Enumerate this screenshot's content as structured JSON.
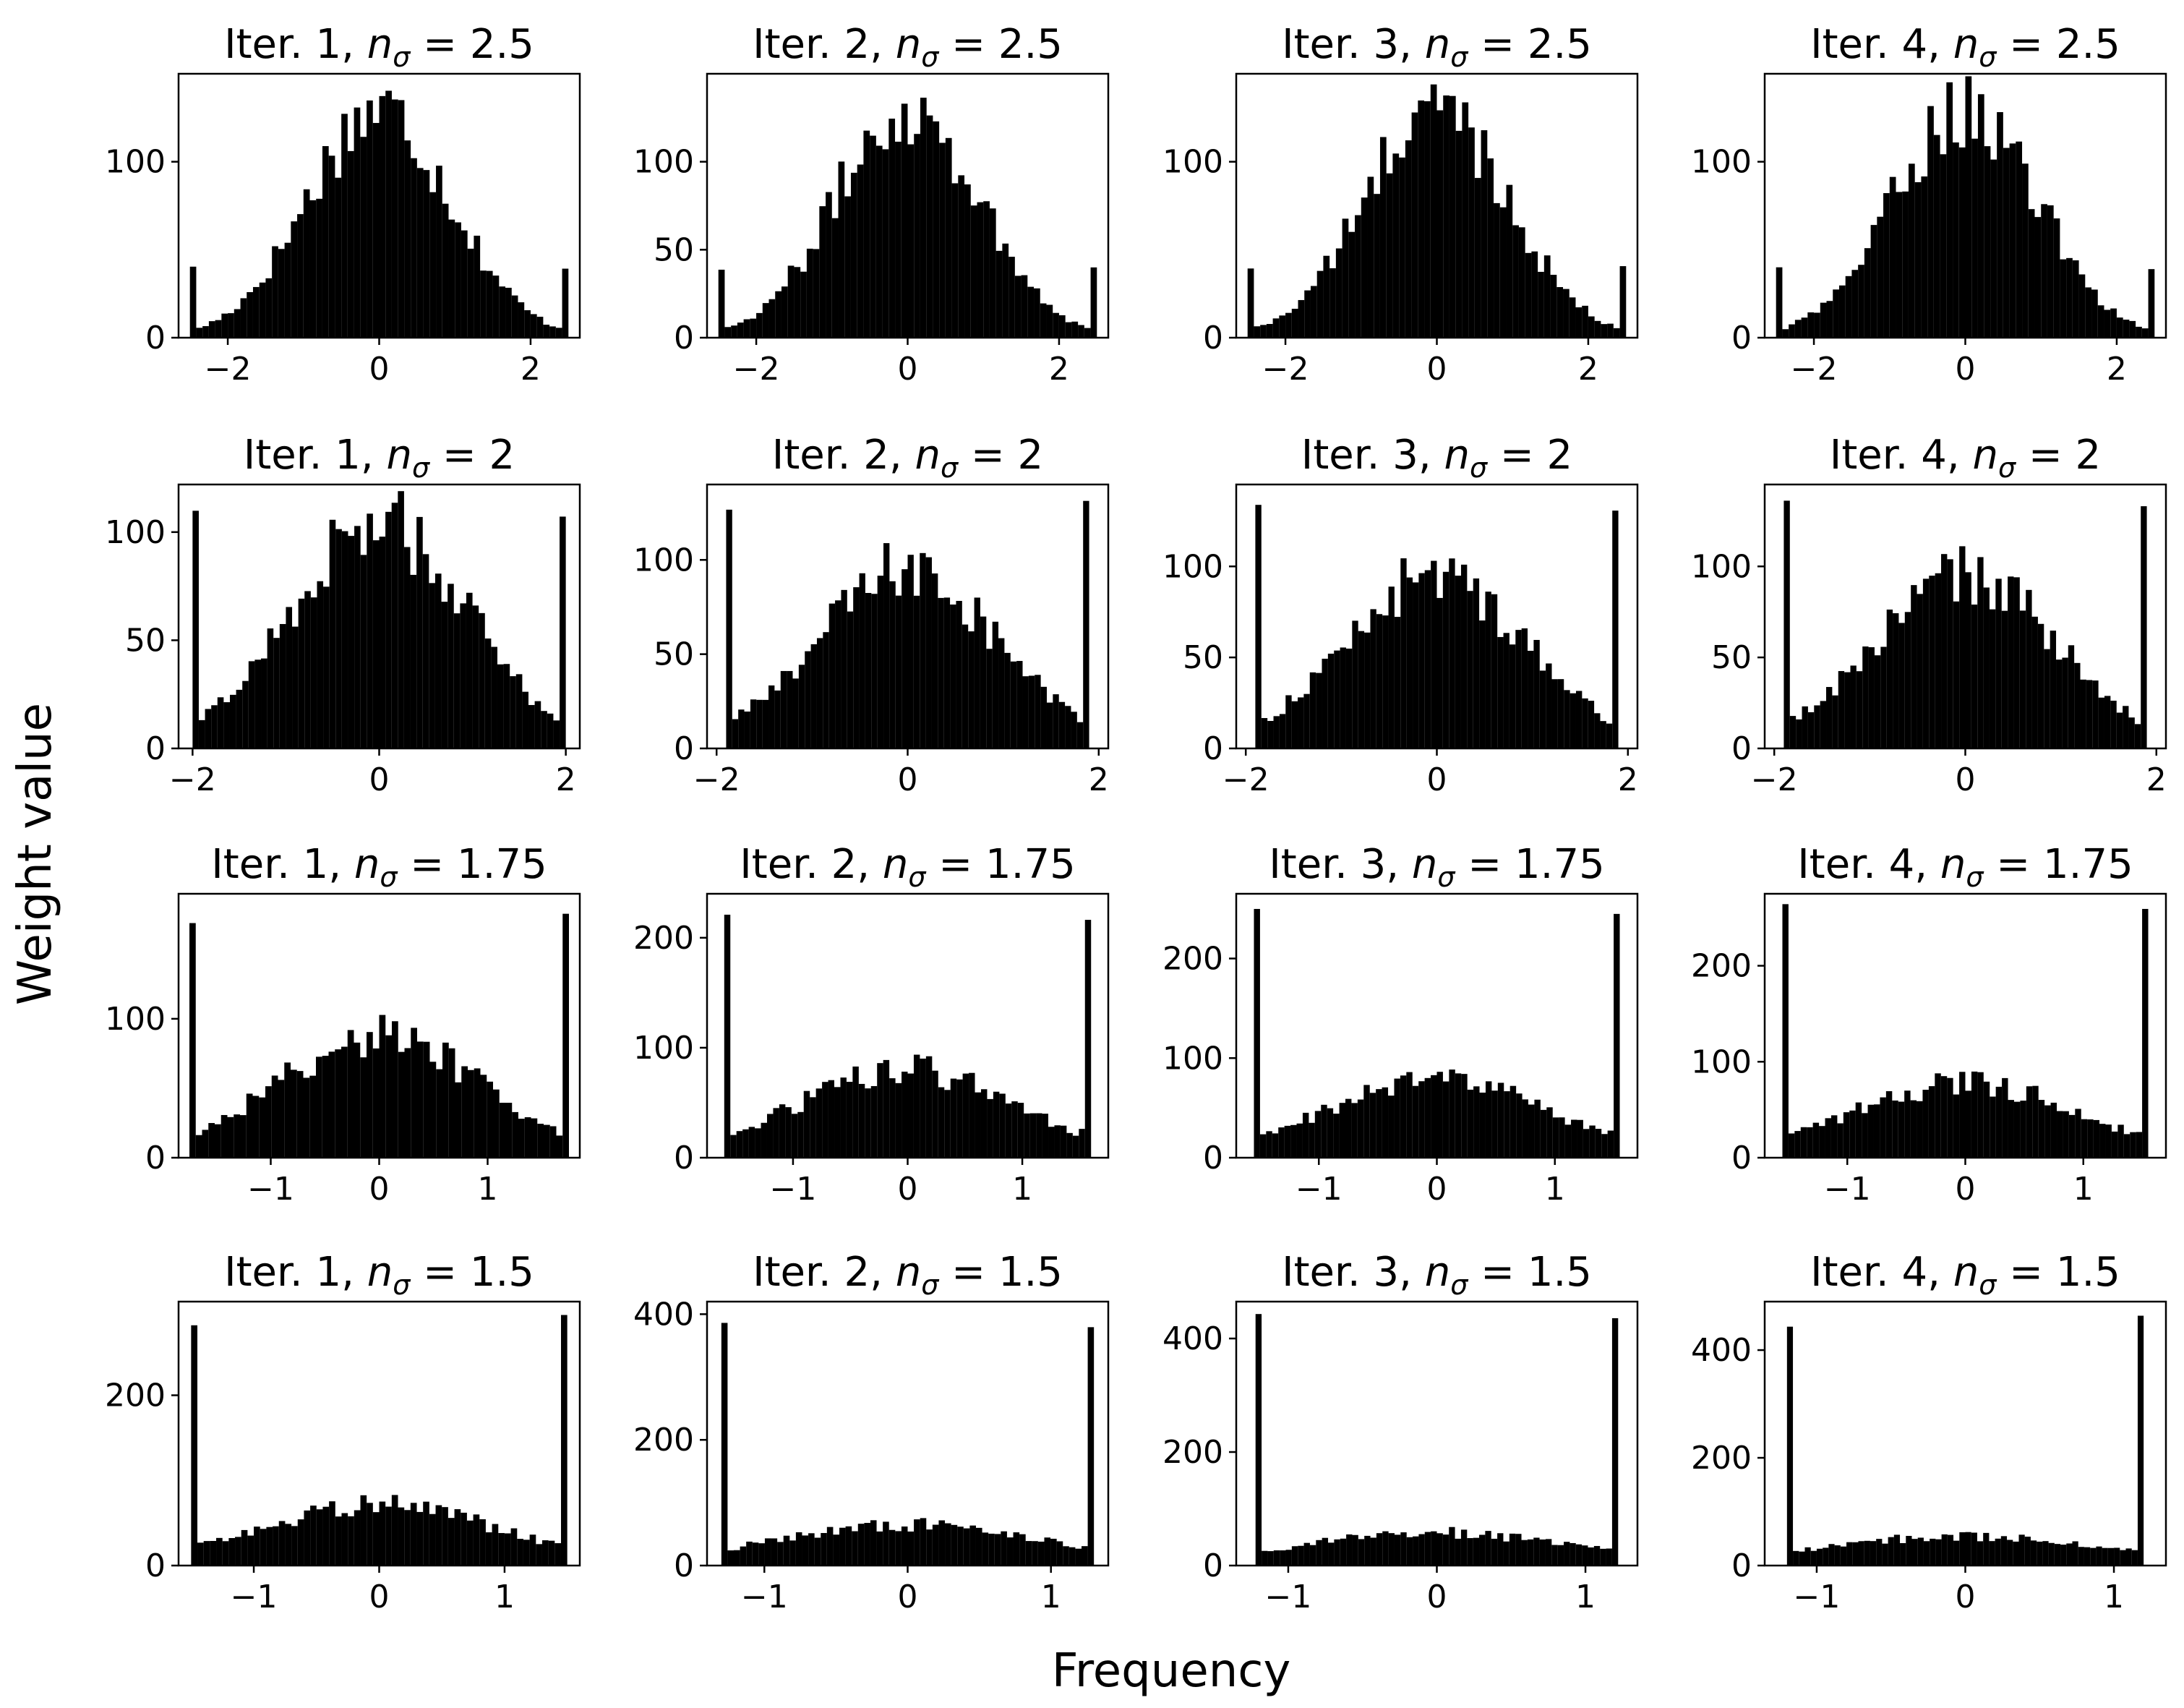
{
  "figure": {
    "xlabel": "Frequency",
    "ylabel": "Weight value",
    "bar_color": "#000000",
    "background": "#ffffff"
  },
  "chart_data": [
    {
      "type": "bar",
      "iter_label": "Iter. 1,",
      "n_sym": "n",
      "n_sub": "σ",
      "n_value": "= 2.5",
      "xlim": [
        -2.65,
        2.65
      ],
      "xticks": [
        -2,
        0,
        2
      ],
      "xtick_labels": [
        "−2",
        "0",
        "2"
      ],
      "ylim": [
        0,
        150
      ],
      "yticks": [
        0,
        100
      ],
      "ytick_labels": [
        "0",
        "100"
      ],
      "clip": 2.5,
      "n_bins": 60,
      "center_freq": 130,
      "sigma": 0.95,
      "edge_spike": 40
    },
    {
      "type": "bar",
      "iter_label": "Iter. 2,",
      "n_sym": "n",
      "n_sub": "σ",
      "n_value": "= 2.5",
      "xlim": [
        -2.65,
        2.65
      ],
      "xticks": [
        -2,
        0,
        2
      ],
      "xtick_labels": [
        "−2",
        "0",
        "2"
      ],
      "ylim": [
        0,
        150
      ],
      "yticks": [
        0,
        50,
        100
      ],
      "ytick_labels": [
        "0",
        "50",
        "100"
      ],
      "clip": 2.5,
      "n_bins": 60,
      "center_freq": 130,
      "sigma": 0.95,
      "edge_spike": 40
    },
    {
      "type": "bar",
      "iter_label": "Iter. 3,",
      "n_sym": "n",
      "n_sub": "σ",
      "n_value": "= 2.5",
      "xlim": [
        -2.65,
        2.65
      ],
      "xticks": [
        -2,
        0,
        2
      ],
      "xtick_labels": [
        "−2",
        "0",
        "2"
      ],
      "ylim": [
        0,
        150
      ],
      "yticks": [
        0,
        100
      ],
      "ytick_labels": [
        "0",
        "100"
      ],
      "clip": 2.5,
      "n_bins": 60,
      "center_freq": 130,
      "sigma": 0.95,
      "edge_spike": 40
    },
    {
      "type": "bar",
      "iter_label": "Iter. 4,",
      "n_sym": "n",
      "n_sub": "σ",
      "n_value": "= 2.5",
      "xlim": [
        -2.65,
        2.65
      ],
      "xticks": [
        -2,
        0,
        2
      ],
      "xtick_labels": [
        "−2",
        "0",
        "2"
      ],
      "ylim": [
        0,
        150
      ],
      "yticks": [
        0,
        100
      ],
      "ytick_labels": [
        "0",
        "100"
      ],
      "clip": 2.5,
      "n_bins": 60,
      "center_freq": 130,
      "sigma": 0.95,
      "edge_spike": 40
    },
    {
      "type": "bar",
      "iter_label": "Iter. 1,",
      "n_sym": "n",
      "n_sub": "σ",
      "n_value": "= 2",
      "xlim": [
        -2.15,
        2.15
      ],
      "xticks": [
        -2,
        0,
        2
      ],
      "xtick_labels": [
        "−2",
        "0",
        "2"
      ],
      "ylim": [
        0,
        122
      ],
      "yticks": [
        0,
        50,
        100
      ],
      "ytick_labels": [
        "0",
        "50",
        "100"
      ],
      "clip": 2.0,
      "n_bins": 60,
      "center_freq": 105,
      "sigma": 0.95,
      "edge_spike": 108
    },
    {
      "type": "bar",
      "iter_label": "Iter. 2,",
      "n_sym": "n",
      "n_sub": "σ",
      "n_value": "= 2",
      "xlim": [
        -2.1,
        2.1
      ],
      "xticks": [
        -2,
        0,
        2
      ],
      "xtick_labels": [
        "−2",
        "0",
        "2"
      ],
      "ylim": [
        0,
        140
      ],
      "yticks": [
        0,
        50,
        100
      ],
      "ytick_labels": [
        "0",
        "50",
        "100"
      ],
      "clip": 1.9,
      "n_bins": 60,
      "center_freq": 95,
      "sigma": 0.95,
      "edge_spike": 130
    },
    {
      "type": "bar",
      "iter_label": "Iter. 3,",
      "n_sym": "n",
      "n_sub": "σ",
      "n_value": "= 2",
      "xlim": [
        -2.1,
        2.1
      ],
      "xticks": [
        -2,
        0,
        2
      ],
      "xtick_labels": [
        "−2",
        "0",
        "2"
      ],
      "ylim": [
        0,
        145
      ],
      "yticks": [
        0,
        50,
        100
      ],
      "ytick_labels": [
        "0",
        "50",
        "100"
      ],
      "clip": 1.9,
      "n_bins": 60,
      "center_freq": 95,
      "sigma": 0.95,
      "edge_spike": 135
    },
    {
      "type": "bar",
      "iter_label": "Iter. 4,",
      "n_sym": "n",
      "n_sub": "σ",
      "n_value": "= 2",
      "xlim": [
        -2.1,
        2.1
      ],
      "xticks": [
        -2,
        0,
        2
      ],
      "xtick_labels": [
        "−2",
        "0",
        "2"
      ],
      "ylim": [
        0,
        145
      ],
      "yticks": [
        0,
        50,
        100
      ],
      "ytick_labels": [
        "0",
        "50",
        "100"
      ],
      "clip": 1.9,
      "n_bins": 60,
      "center_freq": 95,
      "sigma": 0.95,
      "edge_spike": 135
    },
    {
      "type": "bar",
      "iter_label": "Iter. 1,",
      "n_sym": "n",
      "n_sub": "σ",
      "n_value": "= 1.75",
      "xlim": [
        -1.85,
        1.85
      ],
      "xticks": [
        -1,
        0,
        1
      ],
      "xtick_labels": [
        "−1",
        "0",
        "1"
      ],
      "ylim": [
        0,
        190
      ],
      "yticks": [
        0,
        100
      ],
      "ytick_labels": [
        "0",
        "100"
      ],
      "clip": 1.75,
      "n_bins": 60,
      "center_freq": 88,
      "sigma": 0.95,
      "edge_spike": 175
    },
    {
      "type": "bar",
      "iter_label": "Iter. 2,",
      "n_sym": "n",
      "n_sub": "σ",
      "n_value": "= 1.75",
      "xlim": [
        -1.75,
        1.75
      ],
      "xticks": [
        -1,
        0,
        1
      ],
      "xtick_labels": [
        "−1",
        "0",
        "1"
      ],
      "ylim": [
        0,
        240
      ],
      "yticks": [
        0,
        100,
        200
      ],
      "ytick_labels": [
        "0",
        "100",
        "200"
      ],
      "clip": 1.6,
      "n_bins": 60,
      "center_freq": 80,
      "sigma": 0.95,
      "edge_spike": 225
    },
    {
      "type": "bar",
      "iter_label": "Iter. 3,",
      "n_sym": "n",
      "n_sub": "σ",
      "n_value": "= 1.75",
      "xlim": [
        -1.7,
        1.7
      ],
      "xticks": [
        -1,
        0,
        1
      ],
      "xtick_labels": [
        "−1",
        "0",
        "1"
      ],
      "ylim": [
        0,
        265
      ],
      "yticks": [
        0,
        100,
        200
      ],
      "ytick_labels": [
        "0",
        "100",
        "200"
      ],
      "clip": 1.55,
      "n_bins": 60,
      "center_freq": 78,
      "sigma": 0.95,
      "edge_spike": 250
    },
    {
      "type": "bar",
      "iter_label": "Iter. 4,",
      "n_sym": "n",
      "n_sub": "σ",
      "n_value": "= 1.75",
      "xlim": [
        -1.7,
        1.7
      ],
      "xticks": [
        -1,
        0,
        1
      ],
      "xtick_labels": [
        "−1",
        "0",
        "1"
      ],
      "ylim": [
        0,
        275
      ],
      "yticks": [
        0,
        100,
        200
      ],
      "ytick_labels": [
        "0",
        "100",
        "200"
      ],
      "clip": 1.55,
      "n_bins": 60,
      "center_freq": 78,
      "sigma": 0.95,
      "edge_spike": 260
    },
    {
      "type": "bar",
      "iter_label": "Iter. 1,",
      "n_sym": "n",
      "n_sub": "σ",
      "n_value": "= 1.5",
      "xlim": [
        -1.6,
        1.6
      ],
      "xticks": [
        -1,
        0,
        1
      ],
      "xtick_labels": [
        "−1",
        "0",
        "1"
      ],
      "ylim": [
        0,
        310
      ],
      "yticks": [
        0,
        200
      ],
      "ytick_labels": [
        "0",
        "200"
      ],
      "clip": 1.5,
      "n_bins": 60,
      "center_freq": 72,
      "sigma": 0.95,
      "edge_spike": 290
    },
    {
      "type": "bar",
      "iter_label": "Iter. 2,",
      "n_sym": "n",
      "n_sub": "σ",
      "n_value": "= 1.5",
      "xlim": [
        -1.4,
        1.4
      ],
      "xticks": [
        -1,
        0,
        1
      ],
      "xtick_labels": [
        "−1",
        "0",
        "1"
      ],
      "ylim": [
        0,
        420
      ],
      "yticks": [
        0,
        200,
        400
      ],
      "ytick_labels": [
        "0",
        "200",
        "400"
      ],
      "clip": 1.3,
      "n_bins": 60,
      "center_freq": 65,
      "sigma": 0.95,
      "edge_spike": 390
    },
    {
      "type": "bar",
      "iter_label": "Iter. 3,",
      "n_sym": "n",
      "n_sub": "σ",
      "n_value": "= 1.5",
      "xlim": [
        -1.35,
        1.35
      ],
      "xticks": [
        -1,
        0,
        1
      ],
      "xtick_labels": [
        "−1",
        "0",
        "1"
      ],
      "ylim": [
        0,
        465
      ],
      "yticks": [
        0,
        200,
        400
      ],
      "ytick_labels": [
        "0",
        "200",
        "400"
      ],
      "clip": 1.22,
      "n_bins": 60,
      "center_freq": 58,
      "sigma": 0.95,
      "edge_spike": 440
    },
    {
      "type": "bar",
      "iter_label": "Iter. 4,",
      "n_sym": "n",
      "n_sub": "σ",
      "n_value": "= 1.5",
      "xlim": [
        -1.35,
        1.35
      ],
      "xticks": [
        -1,
        0,
        1
      ],
      "xtick_labels": [
        "−1",
        "0",
        "1"
      ],
      "ylim": [
        0,
        490
      ],
      "yticks": [
        0,
        200,
        400
      ],
      "ytick_labels": [
        "0",
        "200",
        "400"
      ],
      "clip": 1.2,
      "n_bins": 60,
      "center_freq": 55,
      "sigma": 0.95,
      "edge_spike": 460
    }
  ]
}
